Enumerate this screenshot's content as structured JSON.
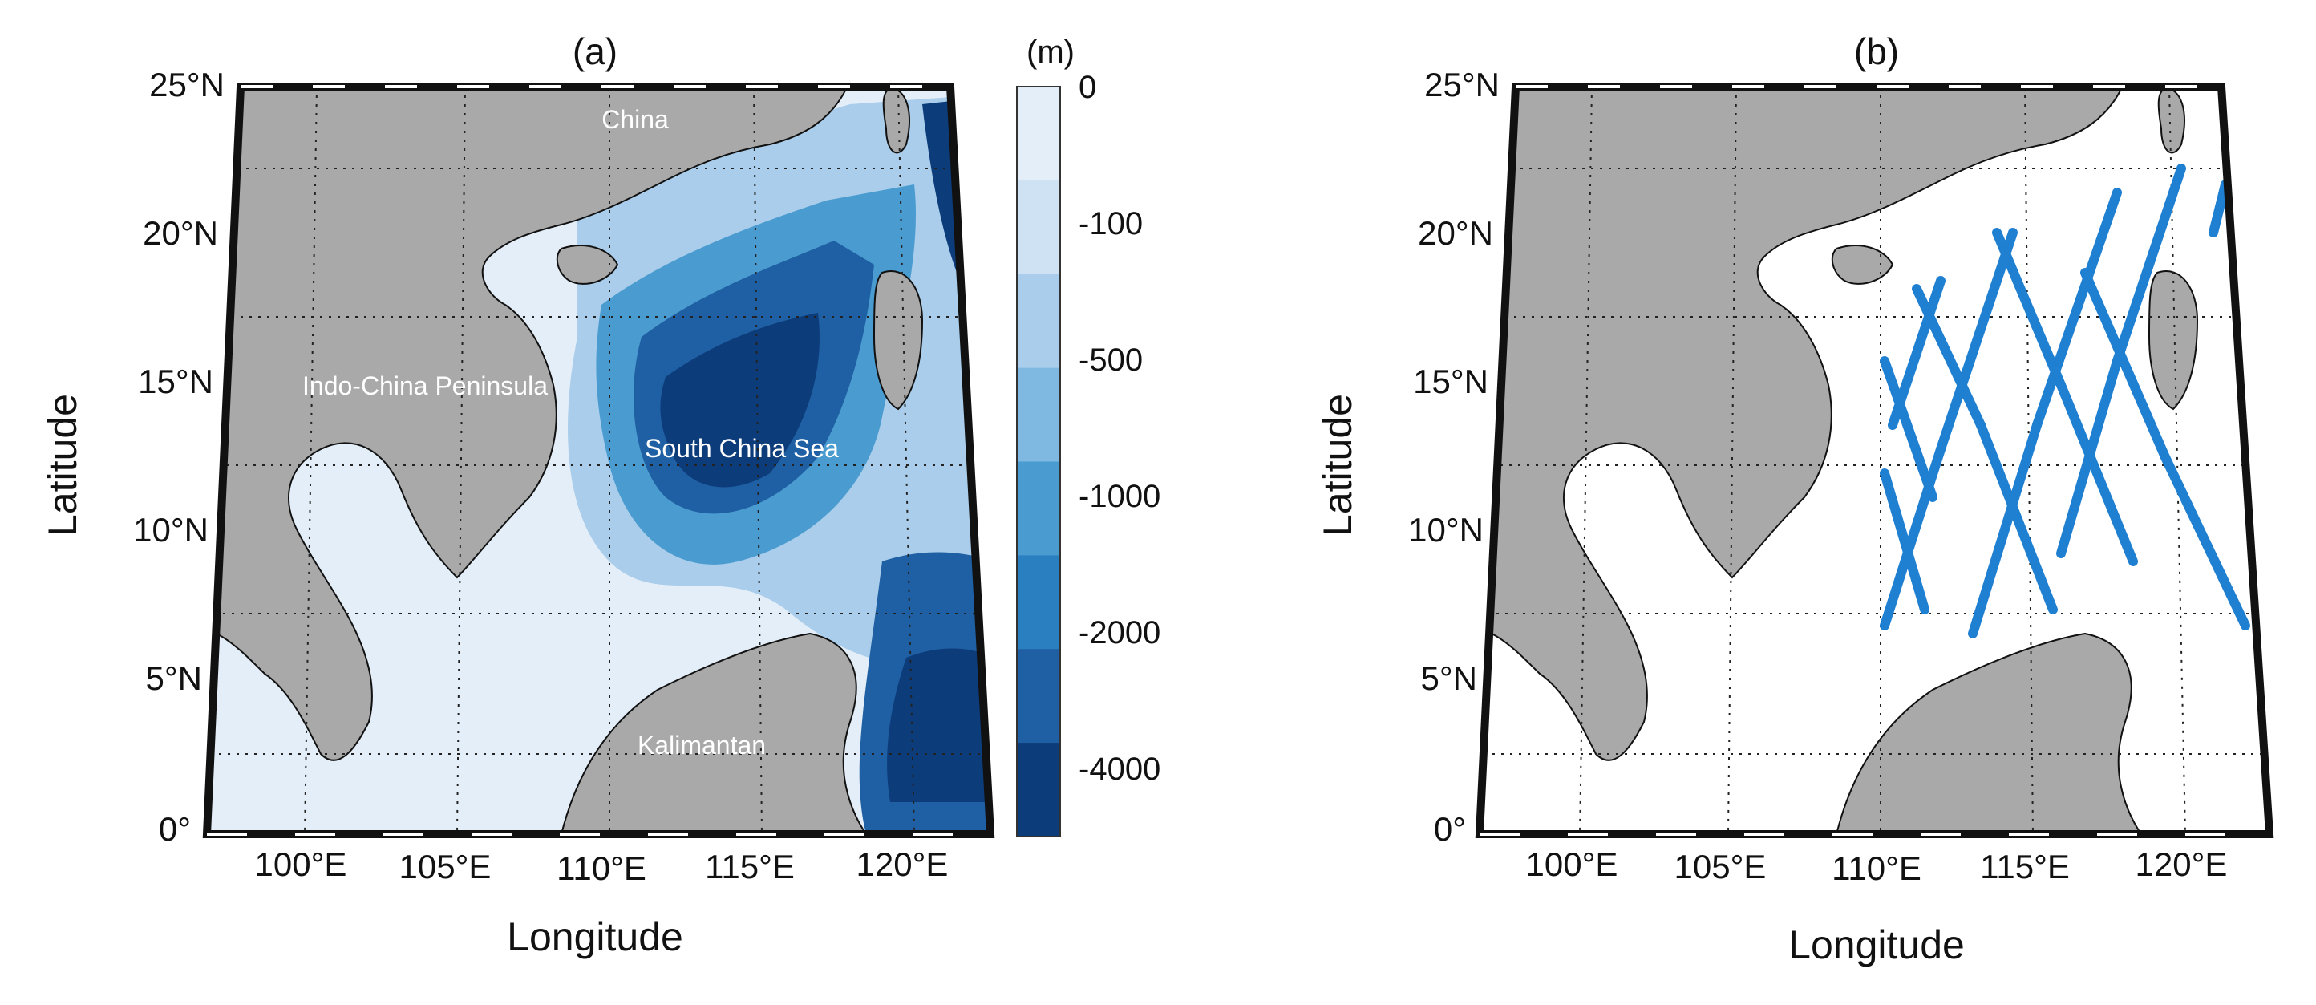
{
  "panels": {
    "a": {
      "title": "(a)",
      "xlabel": "Longitude",
      "ylabel": "Latitude",
      "lat_ticks": [
        "25°N",
        "20°N",
        "15°N",
        "10°N",
        "5°N",
        "0°"
      ],
      "lon_ticks": [
        "100°E",
        "105°E",
        "110°E",
        "115°E",
        "120°E"
      ],
      "regions": {
        "china": "China",
        "indochina": "Indo-China Peninsula",
        "scs": "South China Sea",
        "kalimantan": "Kalimantan"
      }
    },
    "b": {
      "title": "(b)",
      "xlabel": "Longitude",
      "ylabel": "Latitude",
      "lat_ticks": [
        "25°N",
        "20°N",
        "15°N",
        "10°N",
        "5°N",
        "0°"
      ],
      "lon_ticks": [
        "100°E",
        "105°E",
        "110°E",
        "115°E",
        "120°E"
      ]
    }
  },
  "colorbar": {
    "unit": "(m)",
    "ticks": [
      "0",
      "-100",
      "-500",
      "-1000",
      "-2000",
      "-4000"
    ],
    "colors": [
      "#0d3c7a",
      "#1f5fa3",
      "#2a7fc0",
      "#4a9bd0",
      "#7fb8e0",
      "#a9cdea",
      "#cfe2f3",
      "#e3eef8"
    ]
  },
  "colors": {
    "land": "#a9a9a9",
    "track": "#1f7fd1",
    "deep": "#0d3c7a",
    "shallow": "#e3eef8"
  }
}
